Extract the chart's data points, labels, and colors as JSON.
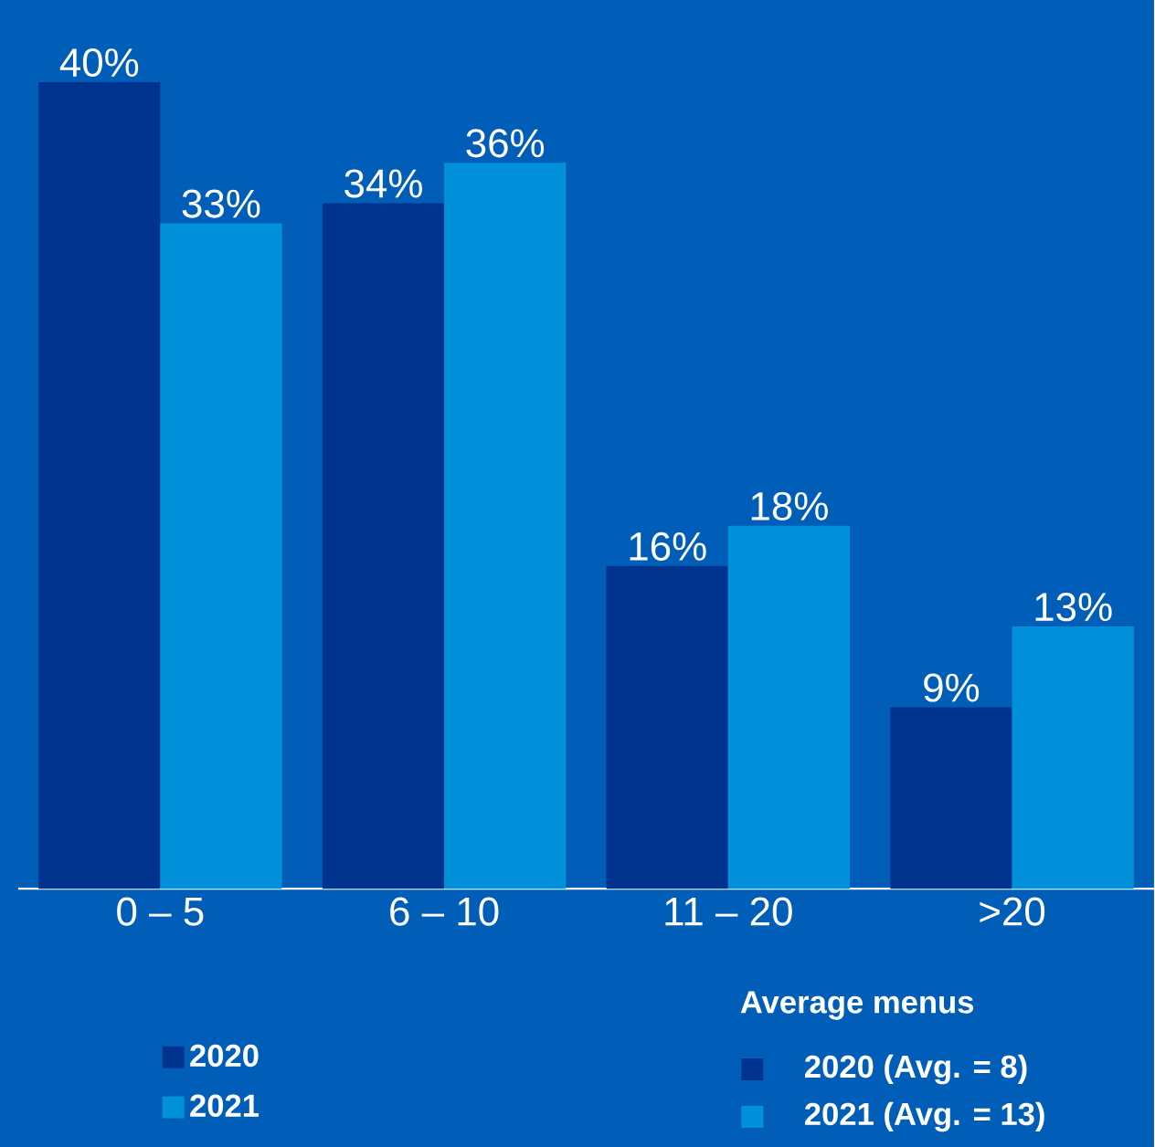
{
  "chart_data": {
    "type": "bar",
    "categories": [
      "0 – 5",
      "6 – 10",
      "11 – 20",
      ">20"
    ],
    "series": [
      {
        "name": "2020",
        "color": "#00338d",
        "values": [
          40,
          34,
          16,
          9
        ],
        "value_labels": [
          "40%",
          "34%",
          "16%",
          "9%"
        ]
      },
      {
        "name": "2021",
        "color": "#0091da",
        "values": [
          33,
          36,
          18,
          13
        ],
        "value_labels": [
          "33%",
          "36%",
          "18%",
          "13%"
        ]
      }
    ],
    "legend": "bottom left",
    "annotations": [
      "Average menus",
      "2020 (Avg. = 8)",
      "2021 (Avg. = 13)"
    ]
  }
}
